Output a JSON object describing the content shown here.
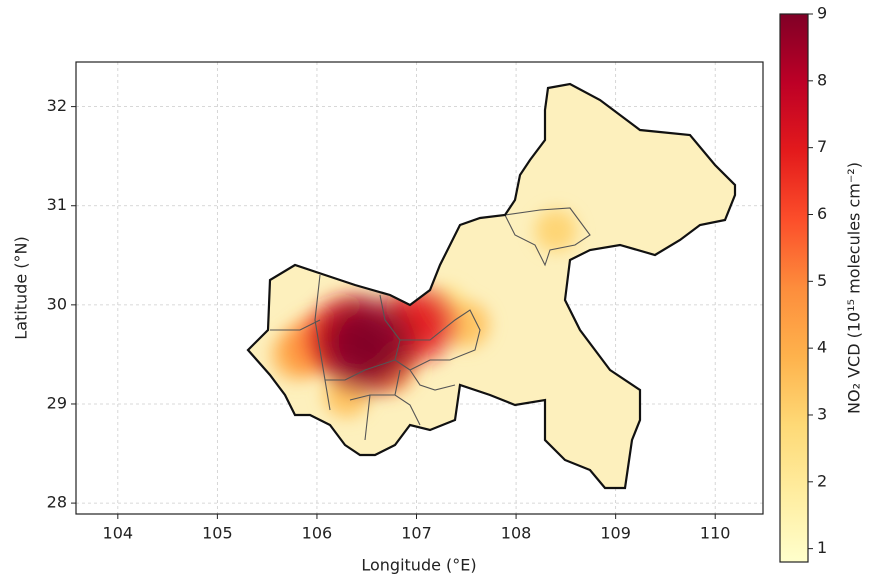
{
  "chart_data": {
    "type": "heatmap",
    "x_label": "Longitude (°E)",
    "y_label": "Latitude (°N)",
    "xlim": [
      103.58,
      110.48
    ],
    "ylim": [
      27.89,
      32.45
    ],
    "xticks": [
      104,
      105,
      106,
      107,
      108,
      109,
      110
    ],
    "yticks": [
      28,
      29,
      30,
      31,
      32
    ],
    "grid": true,
    "x": [
      107.3,
      106.3,
      108.4,
      107.5,
      105.8,
      106.0,
      106.7,
      106.3,
      107.0,
      106.5
    ],
    "y": [
      30.0,
      29.1,
      30.75,
      29.8,
      29.5,
      29.6,
      29.4,
      29.7,
      29.8,
      29.6
    ],
    "values": [
      2.5,
      3.5,
      3,
      3.5,
      4,
      5,
      5,
      7,
      7,
      9
    ],
    "colorbar_label": "NO₂ VCD (10¹⁵ molecules cm⁻²)",
    "clim": [
      0.8,
      9
    ],
    "cticks": [
      1,
      2,
      3,
      4,
      5,
      6,
      7,
      8,
      9
    ],
    "colors": [
      "#ffffcc",
      "#ffeda0",
      "#fed976",
      "#feb24c",
      "#fd8d3c",
      "#fc4e2a",
      "#e31a1c",
      "#bd0026",
      "#800026"
    ]
  }
}
